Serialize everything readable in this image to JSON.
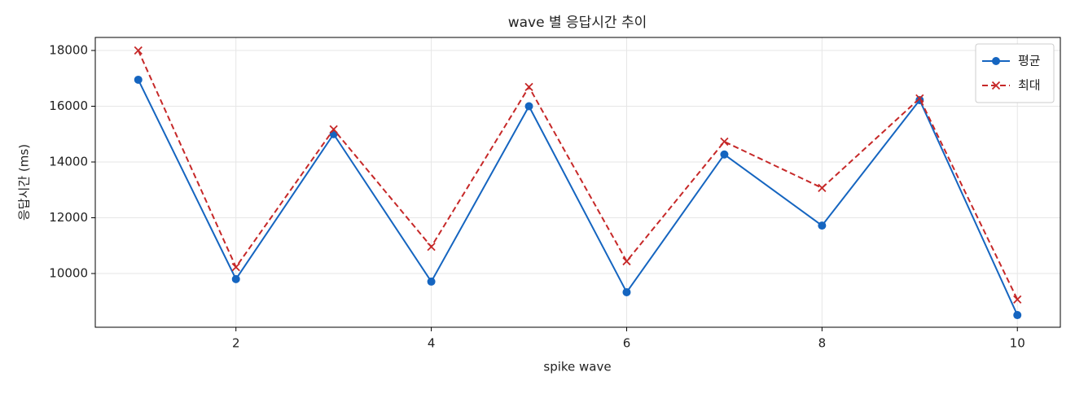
{
  "chart_data": {
    "type": "line",
    "title": "wave 별 응답시간 추이",
    "x_label": "spike wave",
    "y_label": "응답시간 (ms)",
    "x": [
      1,
      2,
      3,
      4,
      5,
      6,
      7,
      8,
      9,
      10
    ],
    "series": [
      {
        "name": "평균",
        "color": "#1565c0",
        "marker": "o",
        "dash": "solid",
        "values": [
          16950,
          9800,
          15000,
          9710,
          16000,
          9330,
          14270,
          11720,
          16220,
          8510
        ]
      },
      {
        "name": "최대",
        "color": "#c62828",
        "marker": "x",
        "dash": "dashed",
        "values": [
          18000,
          10230,
          15170,
          10960,
          16690,
          10440,
          14730,
          13070,
          16280,
          9070
        ]
      }
    ],
    "xlim": [
      0.56,
      10.44
    ],
    "ylim": [
      8073,
      18467
    ],
    "xticks": [
      2,
      4,
      6,
      8,
      10
    ],
    "yticks": [
      10000,
      12000,
      14000,
      16000,
      18000
    ],
    "grid": true,
    "legend": "upper right"
  }
}
